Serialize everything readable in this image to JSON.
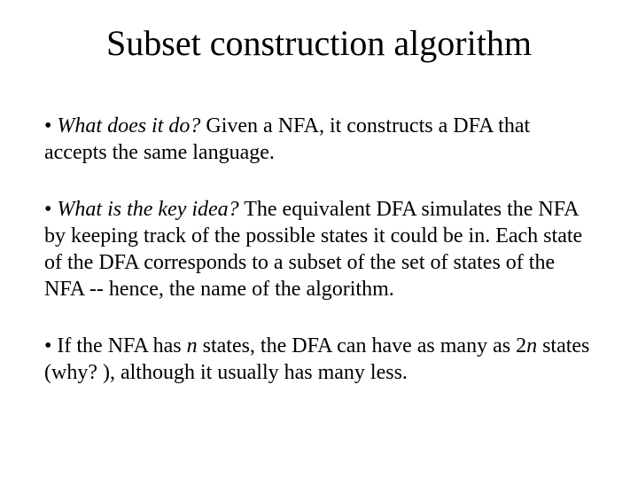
{
  "slide": {
    "title": "Subset construction algorithm",
    "title_fontsize": 40,
    "body_fontsize": 24,
    "background_color": "#ffffff",
    "text_color": "#000000",
    "font_family": "Times New Roman",
    "bullets": [
      {
        "marker": "• ",
        "emphasis": "What does it do?",
        "rest": " Given a NFA, it constructs a DFA that accepts the same language."
      },
      {
        "marker": "• ",
        "emphasis": "What is the key idea?",
        "rest": " The equivalent DFA simulates the NFA by keeping track of the possible states it could be in. Each state of the DFA corresponds to a subset of the set of states of the NFA -- hence, the name of the algorithm."
      },
      {
        "marker": "•  ",
        "pre": "If the NFA has ",
        "emph1": "n",
        "mid": " states, the DFA can have as many as 2",
        "emph2": "n",
        "rest": " states (why? ), although it usually has many less."
      }
    ]
  }
}
